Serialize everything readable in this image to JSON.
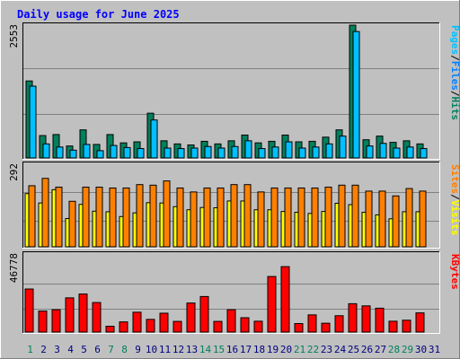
{
  "title": "Daily usage for June 2025",
  "colors": {
    "background": "#c0c0c0",
    "title_text": "#0000ff",
    "hits": "#00805c",
    "files": "#00c0ff",
    "pages": "#00e0ff",
    "visits": "#ff8000",
    "sites": "#ffff00",
    "kbytes": "#ff0000",
    "weekend_day": "#00805c",
    "weekday_day": "#000080"
  },
  "panels": [
    {
      "id": "hits",
      "max_label": "2553",
      "legend": [
        {
          "text": "Pages",
          "color": "#00c0ff"
        },
        {
          "text": "/",
          "color": "#000000"
        },
        {
          "text": "Files",
          "color": "#0080ff"
        },
        {
          "text": "/",
          "color": "#000000"
        },
        {
          "text": "Hits",
          "color": "#00805c"
        }
      ]
    },
    {
      "id": "visits",
      "max_label": "292",
      "legend": [
        {
          "text": "Sites",
          "color": "#ff8000"
        },
        {
          "text": "/",
          "color": "#000000"
        },
        {
          "text": "Visits",
          "color": "#ffff00"
        }
      ]
    },
    {
      "id": "kbytes",
      "max_label": "46778",
      "legend": [
        {
          "text": "KBytes",
          "color": "#ff0000"
        }
      ]
    }
  ],
  "chart_data": [
    {
      "type": "bar",
      "title": "Daily usage for June 2025",
      "categories": [
        "1",
        "2",
        "3",
        "4",
        "5",
        "6",
        "7",
        "8",
        "9",
        "10",
        "11",
        "12",
        "13",
        "14",
        "15",
        "16",
        "17",
        "18",
        "19",
        "20",
        "21",
        "22",
        "23",
        "24",
        "25",
        "26",
        "27",
        "28",
        "29",
        "30",
        "31"
      ],
      "weekend_days": [
        "1",
        "7",
        "8",
        "14",
        "15",
        "21",
        "22",
        "28",
        "29"
      ],
      "ylim": [
        0,
        2553
      ],
      "series": [
        {
          "name": "Hits",
          "values": [
            1480,
            430,
            450,
            230,
            540,
            260,
            450,
            290,
            310,
            860,
            330,
            270,
            250,
            320,
            270,
            330,
            440,
            290,
            320,
            440,
            310,
            320,
            400,
            540,
            2553,
            350,
            420,
            300,
            330,
            270,
            0
          ]
        },
        {
          "name": "Files",
          "values": [
            1380,
            270,
            210,
            150,
            260,
            140,
            240,
            200,
            180,
            730,
            190,
            180,
            190,
            220,
            190,
            220,
            330,
            180,
            210,
            310,
            190,
            210,
            270,
            420,
            2430,
            230,
            280,
            190,
            210,
            180,
            0
          ]
        },
        {
          "name": "Pages",
          "values": [
            0,
            0,
            0,
            0,
            0,
            0,
            0,
            0,
            0,
            0,
            0,
            0,
            0,
            0,
            0,
            0,
            0,
            0,
            0,
            0,
            0,
            0,
            0,
            0,
            0,
            0,
            0,
            0,
            0,
            0,
            0
          ]
        }
      ]
    },
    {
      "type": "bar",
      "categories": [
        "1",
        "2",
        "3",
        "4",
        "5",
        "6",
        "7",
        "8",
        "9",
        "10",
        "11",
        "12",
        "13",
        "14",
        "15",
        "16",
        "17",
        "18",
        "19",
        "20",
        "21",
        "22",
        "23",
        "24",
        "25",
        "26",
        "27",
        "28",
        "29",
        "30",
        "31"
      ],
      "ylim": [
        0,
        292
      ],
      "series": [
        {
          "name": "Visits",
          "values": [
            188,
            155,
            202,
            100,
            150,
            126,
            124,
            107,
            120,
            156,
            155,
            142,
            131,
            139,
            138,
            162,
            162,
            131,
            131,
            125,
            122,
            118,
            125,
            154,
            149,
            122,
            113,
            99,
            124,
            124,
            0
          ]
        },
        {
          "name": "Sites",
          "values": [
            216,
            242,
            211,
            161,
            211,
            211,
            208,
            208,
            220,
            218,
            233,
            208,
            194,
            208,
            208,
            220,
            220,
            194,
            208,
            208,
            208,
            208,
            211,
            218,
            218,
            197,
            197,
            180,
            206,
            197,
            0
          ]
        }
      ]
    },
    {
      "type": "bar",
      "categories": [
        "1",
        "2",
        "3",
        "4",
        "5",
        "6",
        "7",
        "8",
        "9",
        "10",
        "11",
        "12",
        "13",
        "14",
        "15",
        "16",
        "17",
        "18",
        "19",
        "20",
        "21",
        "22",
        "23",
        "24",
        "25",
        "26",
        "27",
        "28",
        "29",
        "30",
        "31"
      ],
      "ylim": [
        0,
        46778
      ],
      "series": [
        {
          "name": "KBytes",
          "values": [
            25800,
            12600,
            13400,
            20500,
            22800,
            17700,
            3500,
            6100,
            11900,
            7600,
            11300,
            6400,
            17400,
            21300,
            6400,
            13400,
            8600,
            6500,
            33300,
            39200,
            5100,
            10300,
            5300,
            9800,
            17000,
            15700,
            14300,
            6500,
            7100,
            11500,
            0
          ]
        }
      ]
    }
  ]
}
